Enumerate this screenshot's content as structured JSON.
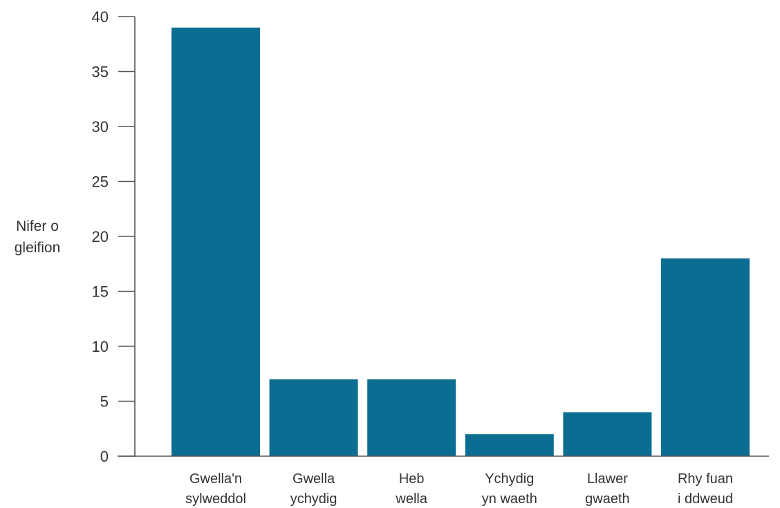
{
  "chart_data": {
    "type": "bar",
    "title": "",
    "xlabel": "",
    "ylabel_lines": [
      "Nifer o",
      "gleifion"
    ],
    "categories": [
      [
        "Gwella'n",
        "sylweddol"
      ],
      [
        "Gwella",
        "ychydig"
      ],
      [
        "Heb",
        "wella"
      ],
      [
        "Ychydig",
        "yn waeth"
      ],
      [
        "Llawer",
        "gwaeth"
      ],
      [
        "Rhy fuan",
        "i ddweud"
      ]
    ],
    "values": [
      39,
      7,
      7,
      2,
      4,
      18
    ],
    "ylim": [
      0,
      40
    ],
    "yticks": [
      "0",
      "5",
      "10",
      "15",
      "20",
      "25",
      "30",
      "35",
      "40"
    ],
    "grid": false,
    "legend": "none",
    "colors": {
      "bar": "#0b6d91",
      "axis": "#555555",
      "text": "#333333"
    }
  }
}
